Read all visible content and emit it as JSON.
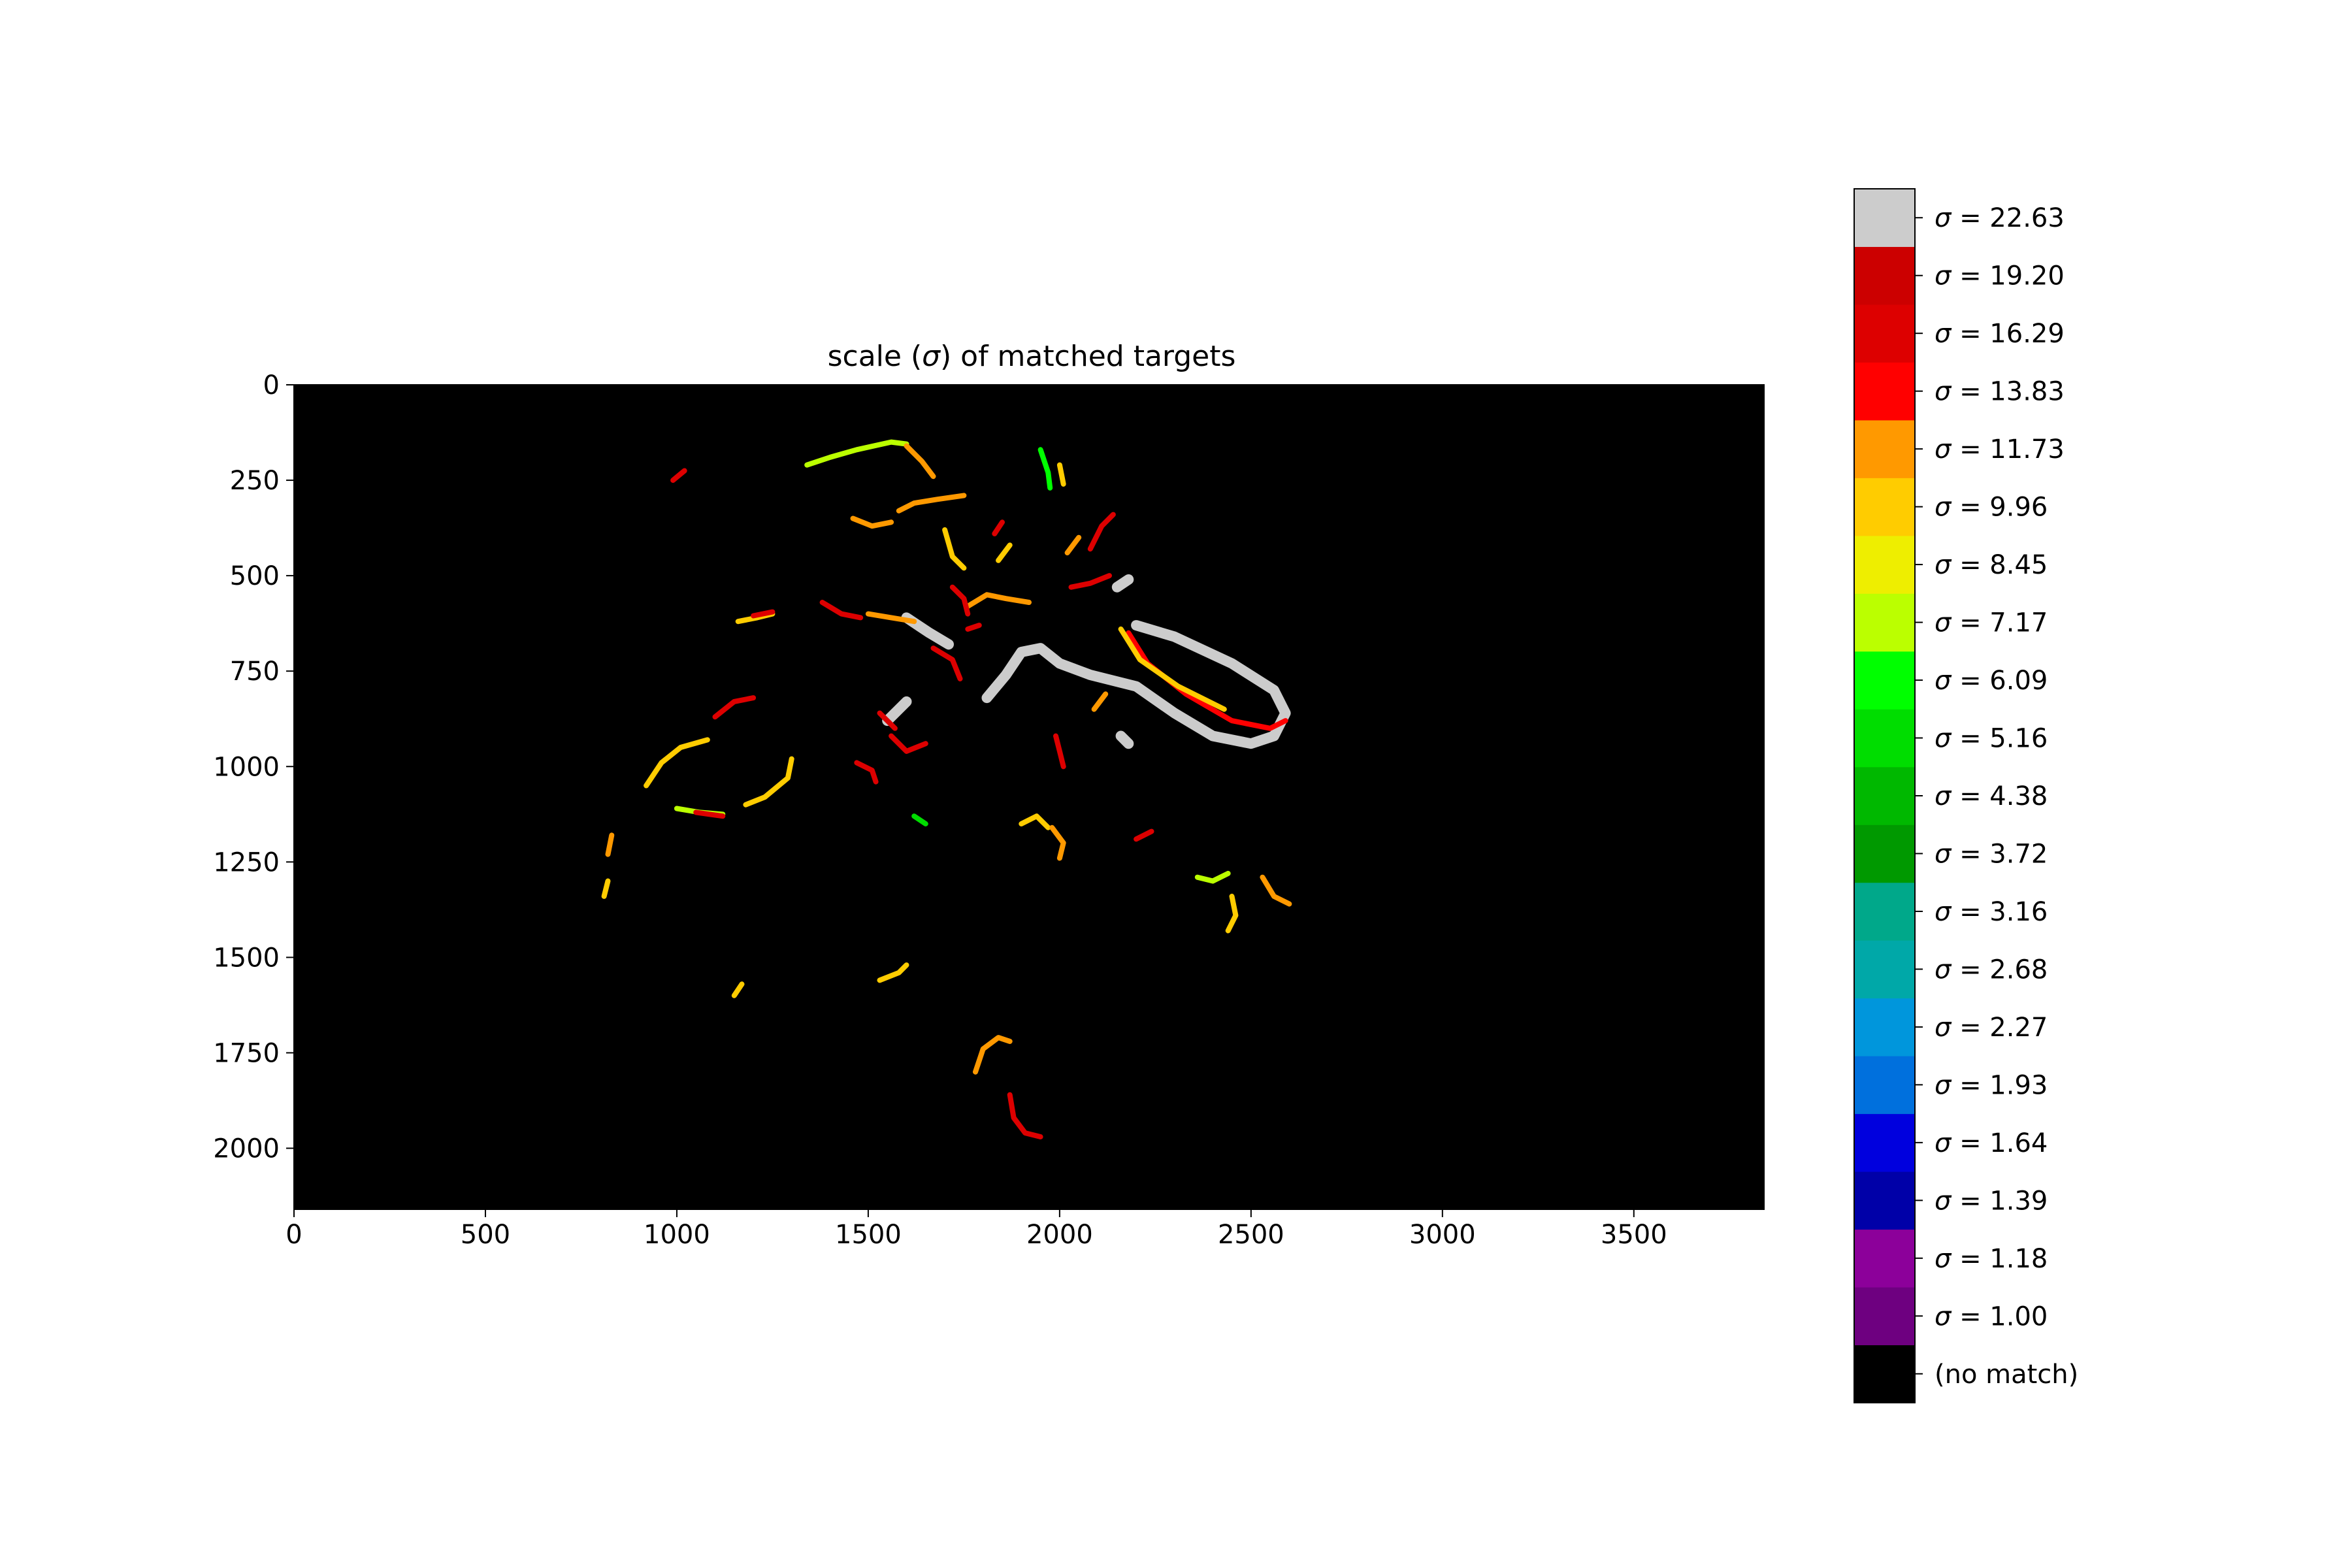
{
  "chart_data": {
    "type": "heatmap",
    "title": "scale (σ) of matched targets",
    "title_parts": {
      "prefix": "scale (",
      "symbol": "σ",
      "suffix": ") of matched targets"
    },
    "xlabel": "",
    "ylabel": "",
    "xlim": [
      0,
      3840
    ],
    "ylim": [
      2160,
      0
    ],
    "x_ticks": [
      0,
      500,
      1000,
      1500,
      2000,
      2500,
      3000,
      3500
    ],
    "y_ticks": [
      0,
      250,
      500,
      750,
      1000,
      1250,
      1500,
      1750,
      2000
    ],
    "background": "#000000",
    "grid": false,
    "colorbar": {
      "symbol": "σ",
      "levels": [
        {
          "label": "(no match)",
          "value": null,
          "color": "#000000"
        },
        {
          "label": "1.00",
          "value": 1.0,
          "color": "#6e0080"
        },
        {
          "label": "1.18",
          "value": 1.18,
          "color": "#8c009a"
        },
        {
          "label": "1.39",
          "value": 1.39,
          "color": "#0000a8"
        },
        {
          "label": "1.64",
          "value": 1.64,
          "color": "#0000de"
        },
        {
          "label": "1.93",
          "value": 1.93,
          "color": "#0070dd"
        },
        {
          "label": "2.27",
          "value": 2.27,
          "color": "#0096dc"
        },
        {
          "label": "2.68",
          "value": 2.68,
          "color": "#00a8a8"
        },
        {
          "label": "3.16",
          "value": 3.16,
          "color": "#00a88a"
        },
        {
          "label": "3.72",
          "value": 3.72,
          "color": "#009900"
        },
        {
          "label": "4.38",
          "value": 4.38,
          "color": "#00b800"
        },
        {
          "label": "5.16",
          "value": 5.16,
          "color": "#00dd00"
        },
        {
          "label": "6.09",
          "value": 6.09,
          "color": "#00ff00"
        },
        {
          "label": "7.17",
          "value": 7.17,
          "color": "#bbff00"
        },
        {
          "label": "8.45",
          "value": 8.45,
          "color": "#eeee00"
        },
        {
          "label": "9.96",
          "value": 9.96,
          "color": "#ffcc00"
        },
        {
          "label": "11.73",
          "value": 11.73,
          "color": "#ff9900"
        },
        {
          "label": "13.83",
          "value": 13.83,
          "color": "#ff0000"
        },
        {
          "label": "16.29",
          "value": 16.29,
          "color": "#dd0000"
        },
        {
          "label": "19.20",
          "value": 19.2,
          "color": "#cc0000"
        },
        {
          "label": "22.63",
          "value": 22.63,
          "color": "#cccccc"
        }
      ]
    },
    "matched_strokes": [
      {
        "sigma": 22.63,
        "points": [
          [
            1810,
            820
          ],
          [
            1860,
            760
          ],
          [
            1900,
            700
          ],
          [
            1950,
            690
          ],
          [
            2000,
            730
          ],
          [
            2080,
            760
          ],
          [
            2200,
            790
          ],
          [
            2300,
            860
          ],
          [
            2400,
            920
          ],
          [
            2500,
            940
          ],
          [
            2560,
            920
          ],
          [
            2590,
            860
          ],
          [
            2560,
            800
          ],
          [
            2450,
            730
          ],
          [
            2300,
            660
          ],
          [
            2200,
            630
          ]
        ]
      },
      {
        "sigma": 13.83,
        "points": [
          [
            2180,
            650
          ],
          [
            2230,
            730
          ],
          [
            2330,
            810
          ],
          [
            2450,
            880
          ],
          [
            2550,
            900
          ],
          [
            2590,
            880
          ]
        ]
      },
      {
        "sigma": 9.96,
        "points": [
          [
            2160,
            640
          ],
          [
            2210,
            720
          ],
          [
            2310,
            790
          ],
          [
            2430,
            850
          ]
        ]
      },
      {
        "sigma": 22.63,
        "points": [
          [
            1600,
            610
          ],
          [
            1660,
            650
          ],
          [
            1710,
            680
          ]
        ]
      },
      {
        "sigma": 22.63,
        "points": [
          [
            1550,
            880
          ],
          [
            1600,
            830
          ]
        ]
      },
      {
        "sigma": 16.29,
        "points": [
          [
            1560,
            920
          ],
          [
            1600,
            960
          ],
          [
            1650,
            940
          ]
        ]
      },
      {
        "sigma": 7.17,
        "points": [
          [
            1340,
            210
          ],
          [
            1400,
            190
          ],
          [
            1470,
            170
          ],
          [
            1560,
            150
          ],
          [
            1600,
            155
          ]
        ]
      },
      {
        "sigma": 11.73,
        "points": [
          [
            1600,
            160
          ],
          [
            1640,
            200
          ],
          [
            1670,
            240
          ]
        ]
      },
      {
        "sigma": 16.29,
        "points": [
          [
            990,
            250
          ],
          [
            1020,
            225
          ]
        ]
      },
      {
        "sigma": 9.96,
        "points": [
          [
            1700,
            380
          ],
          [
            1720,
            450
          ],
          [
            1750,
            480
          ]
        ]
      },
      {
        "sigma": 11.73,
        "points": [
          [
            1580,
            330
          ],
          [
            1620,
            310
          ],
          [
            1680,
            300
          ],
          [
            1750,
            290
          ]
        ]
      },
      {
        "sigma": 11.73,
        "points": [
          [
            1460,
            350
          ],
          [
            1510,
            370
          ],
          [
            1560,
            360
          ]
        ]
      },
      {
        "sigma": 6.09,
        "points": [
          [
            1950,
            170
          ],
          [
            1970,
            230
          ],
          [
            1975,
            270
          ]
        ]
      },
      {
        "sigma": 9.96,
        "points": [
          [
            2000,
            210
          ],
          [
            2010,
            260
          ]
        ]
      },
      {
        "sigma": 16.29,
        "points": [
          [
            2080,
            430
          ],
          [
            2110,
            370
          ],
          [
            2140,
            340
          ]
        ]
      },
      {
        "sigma": 11.73,
        "points": [
          [
            2020,
            440
          ],
          [
            2050,
            400
          ]
        ]
      },
      {
        "sigma": 16.29,
        "points": [
          [
            2030,
            530
          ],
          [
            2080,
            520
          ],
          [
            2130,
            500
          ]
        ]
      },
      {
        "sigma": 11.73,
        "points": [
          [
            1760,
            580
          ],
          [
            1810,
            550
          ],
          [
            1860,
            560
          ],
          [
            1920,
            570
          ]
        ]
      },
      {
        "sigma": 16.29,
        "points": [
          [
            1380,
            570
          ],
          [
            1430,
            600
          ],
          [
            1480,
            610
          ]
        ]
      },
      {
        "sigma": 9.96,
        "points": [
          [
            1160,
            620
          ],
          [
            1210,
            610
          ],
          [
            1250,
            600
          ]
        ]
      },
      {
        "sigma": 16.29,
        "points": [
          [
            1200,
            605
          ],
          [
            1250,
            595
          ]
        ]
      },
      {
        "sigma": 16.29,
        "points": [
          [
            1720,
            530
          ],
          [
            1750,
            560
          ],
          [
            1760,
            600
          ]
        ]
      },
      {
        "sigma": 16.29,
        "points": [
          [
            1670,
            690
          ],
          [
            1720,
            720
          ],
          [
            1740,
            770
          ]
        ]
      },
      {
        "sigma": 11.73,
        "points": [
          [
            1500,
            600
          ],
          [
            1560,
            610
          ],
          [
            1620,
            620
          ]
        ]
      },
      {
        "sigma": 9.96,
        "points": [
          [
            920,
            1050
          ],
          [
            960,
            990
          ],
          [
            1010,
            950
          ],
          [
            1080,
            930
          ]
        ]
      },
      {
        "sigma": 16.29,
        "points": [
          [
            1100,
            870
          ],
          [
            1150,
            830
          ],
          [
            1200,
            820
          ]
        ]
      },
      {
        "sigma": 7.17,
        "points": [
          [
            1000,
            1110
          ],
          [
            1060,
            1120
          ],
          [
            1120,
            1125
          ]
        ]
      },
      {
        "sigma": 9.96,
        "points": [
          [
            1180,
            1100
          ],
          [
            1230,
            1080
          ],
          [
            1290,
            1030
          ],
          [
            1300,
            980
          ]
        ]
      },
      {
        "sigma": 16.29,
        "points": [
          [
            1050,
            1120
          ],
          [
            1120,
            1130
          ]
        ]
      },
      {
        "sigma": 16.29,
        "points": [
          [
            1470,
            990
          ],
          [
            1510,
            1010
          ],
          [
            1520,
            1040
          ]
        ]
      },
      {
        "sigma": 16.29,
        "points": [
          [
            1530,
            860
          ],
          [
            1570,
            900
          ]
        ]
      },
      {
        "sigma": 16.29,
        "points": [
          [
            1990,
            920
          ],
          [
            2000,
            960
          ],
          [
            2010,
            1000
          ]
        ]
      },
      {
        "sigma": 11.73,
        "points": [
          [
            2090,
            850
          ],
          [
            2120,
            810
          ]
        ]
      },
      {
        "sigma": 22.63,
        "points": [
          [
            2160,
            920
          ],
          [
            2180,
            940
          ]
        ]
      },
      {
        "sigma": 9.96,
        "points": [
          [
            1900,
            1150
          ],
          [
            1940,
            1130
          ],
          [
            1970,
            1160
          ]
        ]
      },
      {
        "sigma": 11.73,
        "points": [
          [
            1980,
            1160
          ],
          [
            2010,
            1200
          ],
          [
            2000,
            1240
          ]
        ]
      },
      {
        "sigma": 16.29,
        "points": [
          [
            2200,
            1190
          ],
          [
            2240,
            1170
          ]
        ]
      },
      {
        "sigma": 7.17,
        "points": [
          [
            2360,
            1290
          ],
          [
            2400,
            1300
          ],
          [
            2440,
            1280
          ]
        ]
      },
      {
        "sigma": 11.73,
        "points": [
          [
            2530,
            1290
          ],
          [
            2560,
            1340
          ],
          [
            2600,
            1360
          ]
        ]
      },
      {
        "sigma": 9.96,
        "points": [
          [
            2450,
            1340
          ],
          [
            2460,
            1390
          ],
          [
            2440,
            1430
          ]
        ]
      },
      {
        "sigma": 9.96,
        "points": [
          [
            1530,
            1560
          ],
          [
            1580,
            1540
          ],
          [
            1600,
            1520
          ]
        ]
      },
      {
        "sigma": 11.73,
        "points": [
          [
            1780,
            1800
          ],
          [
            1800,
            1740
          ],
          [
            1840,
            1710
          ],
          [
            1870,
            1720
          ]
        ]
      },
      {
        "sigma": 16.29,
        "points": [
          [
            1870,
            1860
          ],
          [
            1880,
            1920
          ],
          [
            1910,
            1960
          ],
          [
            1950,
            1970
          ]
        ]
      },
      {
        "sigma": 9.96,
        "points": [
          [
            1150,
            1600
          ],
          [
            1170,
            1570
          ]
        ]
      },
      {
        "sigma": 9.96,
        "points": [
          [
            810,
            1340
          ],
          [
            820,
            1300
          ]
        ]
      },
      {
        "sigma": 11.73,
        "points": [
          [
            820,
            1230
          ],
          [
            830,
            1180
          ]
        ]
      },
      {
        "sigma": 22.63,
        "points": [
          [
            2150,
            530
          ],
          [
            2180,
            510
          ]
        ]
      },
      {
        "sigma": 16.29,
        "points": [
          [
            1760,
            640
          ],
          [
            1790,
            630
          ]
        ]
      },
      {
        "sigma": 9.96,
        "points": [
          [
            1840,
            460
          ],
          [
            1870,
            420
          ]
        ]
      },
      {
        "sigma": 16.29,
        "points": [
          [
            1830,
            390
          ],
          [
            1850,
            360
          ]
        ]
      },
      {
        "sigma": 5.16,
        "points": [
          [
            1620,
            1130
          ],
          [
            1650,
            1150
          ]
        ]
      }
    ]
  }
}
